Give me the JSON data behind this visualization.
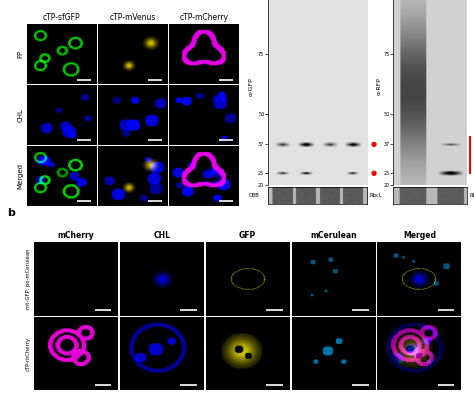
{
  "panel_a": {
    "col_labels": [
      "cTP-sfGFP",
      "cTP-mVenus",
      "cTP-mCherry"
    ],
    "row_labels": [
      "FP",
      "CHL",
      "Merged"
    ]
  },
  "panel_b": {
    "col_labels": [
      "mCherry",
      "CHL",
      "GFP",
      "mCerulean",
      "Merged"
    ],
    "row_labels": [
      "mt-GFP, po-mCerulean",
      "cTP-mCherry"
    ]
  },
  "bg_color": "#ffffff",
  "panel_label_fontsize": 8,
  "col_label_fontsize": 5.5,
  "row_label_fontsize": 5
}
